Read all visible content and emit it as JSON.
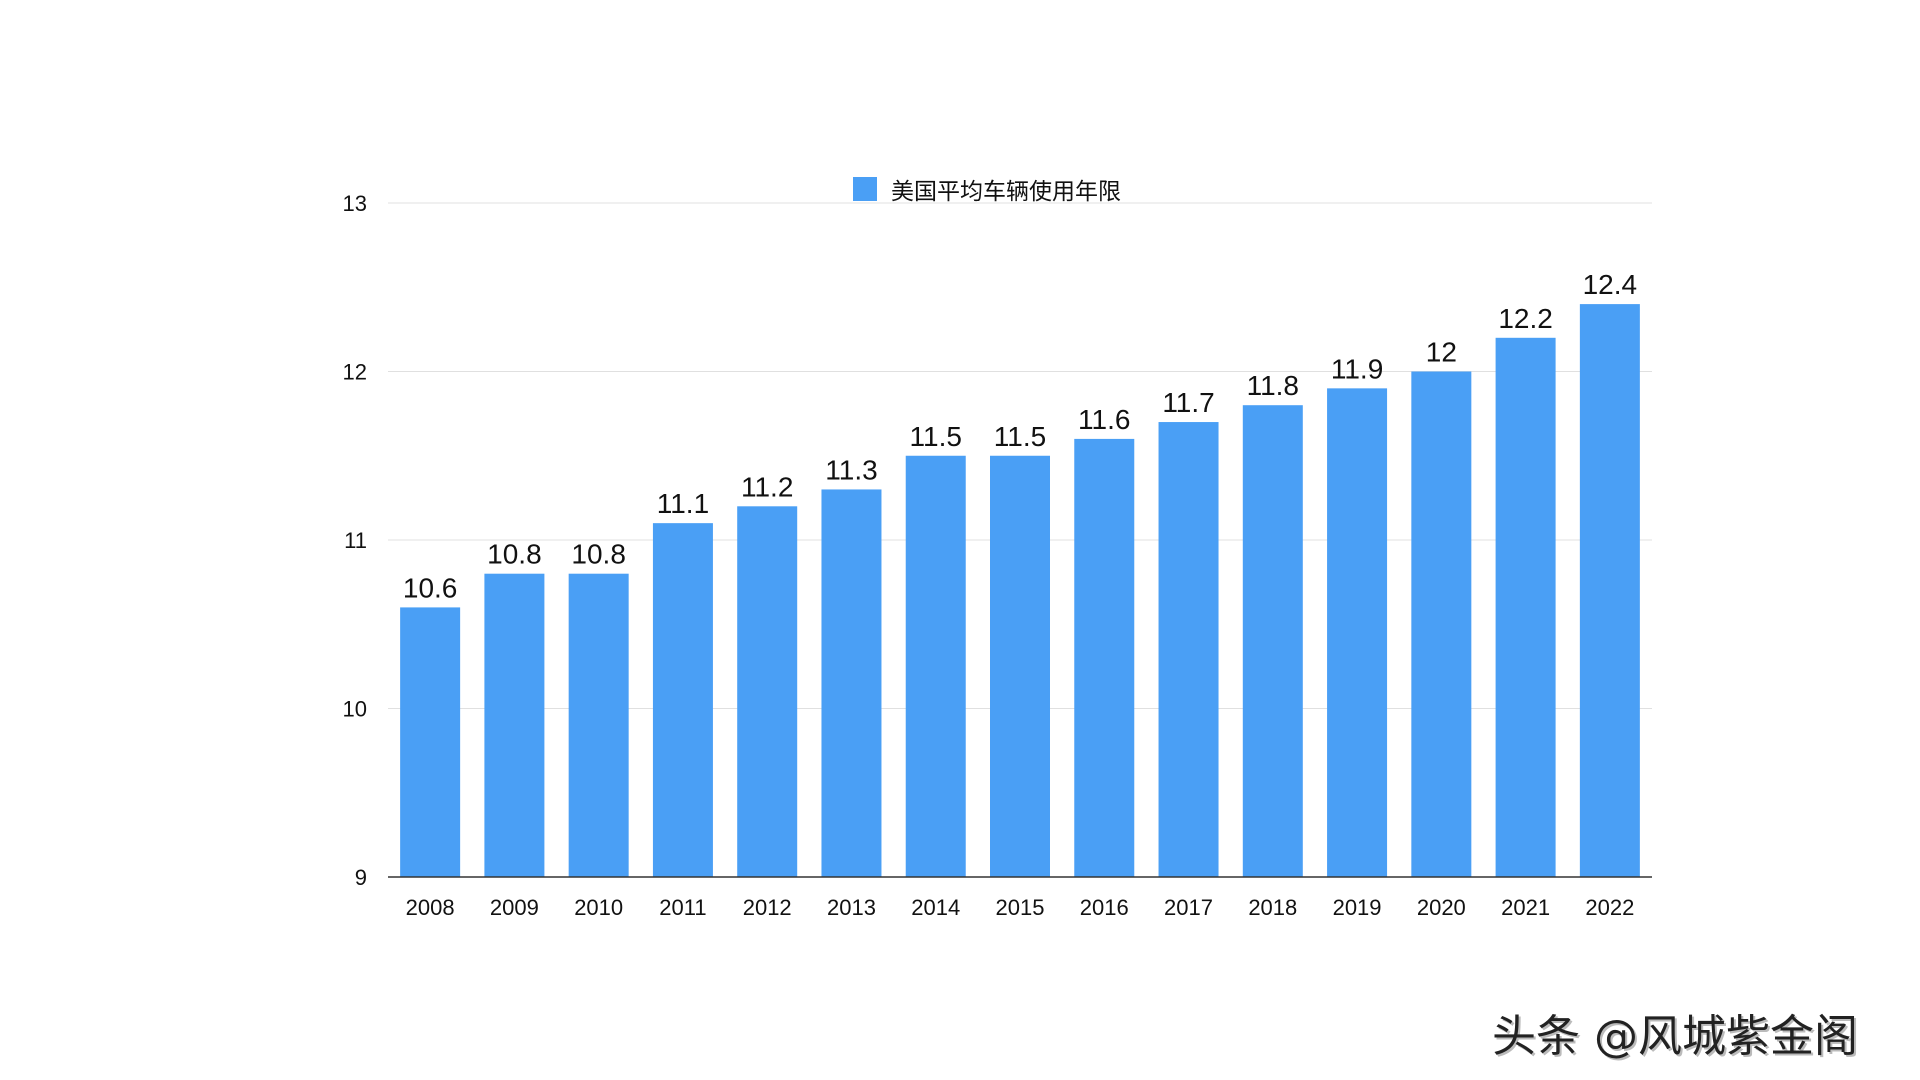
{
  "chart_data": {
    "type": "bar",
    "title": "",
    "xlabel": "",
    "ylabel": "",
    "categories": [
      "2008",
      "2009",
      "2010",
      "2011",
      "2012",
      "2013",
      "2014",
      "2015",
      "2016",
      "2017",
      "2018",
      "2019",
      "2020",
      "2021",
      "2022"
    ],
    "series": [
      {
        "name": "美国平均车辆使用年限",
        "values": [
          10.6,
          10.8,
          10.8,
          11.1,
          11.2,
          11.3,
          11.5,
          11.5,
          11.6,
          11.7,
          11.8,
          11.9,
          12,
          12.2,
          12.4
        ],
        "color": "#4A9FF5"
      }
    ],
    "data_labels": [
      "10.6",
      "10.8",
      "10.8",
      "11.1",
      "11.2",
      "11.3",
      "11.5",
      "11.5",
      "11.6",
      "11.7",
      "11.8",
      "11.9",
      "12",
      "12.2",
      "12.4"
    ],
    "ylim": [
      9,
      13
    ],
    "yticks": [
      "9",
      "10",
      "11",
      "12",
      "13"
    ],
    "grid": true,
    "legend_placement": "top-center"
  },
  "legend": {
    "label": "美国平均车辆使用年限"
  },
  "watermark": "头条 @风城紫金阁"
}
